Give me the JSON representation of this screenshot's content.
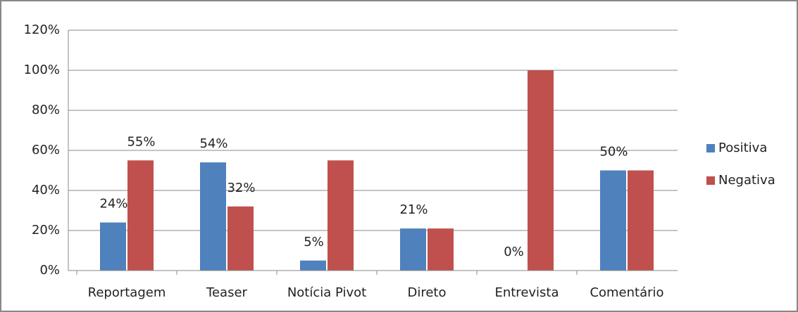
{
  "chart_data": {
    "type": "bar",
    "categories": [
      "Reportagem",
      "Teaser",
      "Notícia Pivot",
      "Direto",
      "Entrevista",
      "Comentário"
    ],
    "series": [
      {
        "name": "Positiva",
        "color": "#4f81bd",
        "values": [
          24,
          54,
          5,
          21,
          0,
          50
        ],
        "value_labels": [
          "24%",
          "54%",
          "5%",
          "21%",
          "0%",
          "50%"
        ]
      },
      {
        "name": "Negativa",
        "color": "#c0504d",
        "values": [
          55,
          32,
          55,
          21,
          100,
          50
        ],
        "value_labels": [
          "55%",
          "32%",
          null,
          null,
          null,
          null
        ]
      }
    ],
    "ylim": [
      0,
      120
    ],
    "yticks": [
      {
        "value": 0,
        "label": "0%"
      },
      {
        "value": 20,
        "label": "20%"
      },
      {
        "value": 40,
        "label": "40%"
      },
      {
        "value": 60,
        "label": "60%"
      },
      {
        "value": 80,
        "label": "80%"
      },
      {
        "value": 100,
        "label": "100%"
      },
      {
        "value": 120,
        "label": "120%"
      }
    ],
    "grid": true,
    "legend": "right"
  }
}
